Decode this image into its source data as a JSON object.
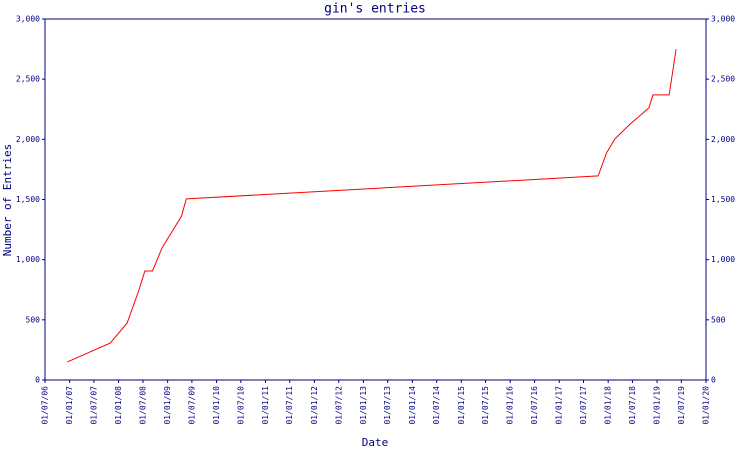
{
  "chart_data": {
    "type": "line",
    "title": "gin's entries",
    "xlabel": "Date",
    "ylabel": "Number of Entries",
    "x": [
      "2006-12-15",
      "2007-11-01",
      "2008-03-05",
      "2008-06-01",
      "2008-07-15",
      "2008-09-10",
      "2008-11-20",
      "2009-04-15",
      "2009-05-20",
      "2017-10-18",
      "2017-12-20",
      "2018-02-20",
      "2018-06-15",
      "2018-11-01",
      "2018-12-01",
      "2019-04-01",
      "2019-05-23"
    ],
    "values": [
      150,
      308,
      474,
      748,
      906,
      906,
      1097,
      1363,
      1505,
      1696,
      1887,
      2003,
      2128,
      2261,
      2369,
      2369,
      2750
    ],
    "color": "#ff0000",
    "xlim": [
      "2006-07-01",
      "2020-01-01"
    ],
    "xticks": [
      {
        "value": "2006-07-01",
        "label": "01/07/06"
      },
      {
        "value": "2007-01-01",
        "label": "01/01/07"
      },
      {
        "value": "2007-07-01",
        "label": "01/07/07"
      },
      {
        "value": "2008-01-01",
        "label": "01/01/08"
      },
      {
        "value": "2008-07-01",
        "label": "01/07/08"
      },
      {
        "value": "2009-01-01",
        "label": "01/01/09"
      },
      {
        "value": "2009-07-01",
        "label": "01/07/09"
      },
      {
        "value": "2010-01-01",
        "label": "01/01/10"
      },
      {
        "value": "2010-07-01",
        "label": "01/07/10"
      },
      {
        "value": "2011-01-01",
        "label": "01/01/11"
      },
      {
        "value": "2011-07-01",
        "label": "01/07/11"
      },
      {
        "value": "2012-01-01",
        "label": "01/01/12"
      },
      {
        "value": "2012-07-01",
        "label": "01/07/12"
      },
      {
        "value": "2013-01-01",
        "label": "01/01/13"
      },
      {
        "value": "2013-07-01",
        "label": "01/07/13"
      },
      {
        "value": "2014-01-01",
        "label": "01/01/14"
      },
      {
        "value": "2014-07-01",
        "label": "01/07/14"
      },
      {
        "value": "2015-01-01",
        "label": "01/01/15"
      },
      {
        "value": "2015-07-01",
        "label": "01/07/15"
      },
      {
        "value": "2016-01-01",
        "label": "01/01/16"
      },
      {
        "value": "2016-07-01",
        "label": "01/07/16"
      },
      {
        "value": "2017-01-01",
        "label": "01/01/17"
      },
      {
        "value": "2017-07-01",
        "label": "01/07/17"
      },
      {
        "value": "2018-01-01",
        "label": "01/01/18"
      },
      {
        "value": "2018-07-01",
        "label": "01/07/18"
      },
      {
        "value": "2019-01-01",
        "label": "01/01/19"
      },
      {
        "value": "2019-07-01",
        "label": "01/07/19"
      },
      {
        "value": "2020-01-01",
        "label": "01/01/20"
      }
    ],
    "ylim": [
      0,
      3000
    ],
    "yticks": [
      0,
      500,
      {
        "value": 1000,
        "label": "1,000"
      },
      {
        "value": 1500,
        "label": "1,500"
      },
      {
        "value": 2000,
        "label": "2,000"
      },
      {
        "value": 2500,
        "label": "2,500"
      },
      {
        "value": 3000,
        "label": "3,000"
      }
    ]
  }
}
